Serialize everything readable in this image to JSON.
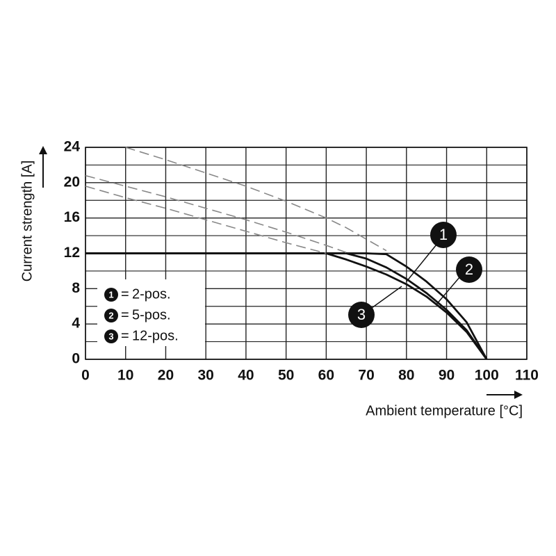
{
  "chart_data": {
    "type": "line",
    "y_label": "Current strength [A]",
    "x_label": "Ambient temperature [°C]",
    "x": [
      0,
      10,
      20,
      30,
      40,
      50,
      60,
      65,
      70,
      75,
      80,
      85,
      90,
      95,
      100
    ],
    "series": [
      {
        "name": "2-pos.",
        "marker": "1",
        "color": "#111111",
        "dashed": false,
        "values": [
          12,
          12,
          12,
          12,
          12,
          12,
          12,
          12,
          12,
          11.9,
          10.5,
          8.8,
          6.8,
          4.2,
          0
        ]
      },
      {
        "name": "5-pos.",
        "marker": "2",
        "color": "#111111",
        "dashed": false,
        "values": [
          12,
          12,
          12,
          12,
          12,
          12,
          12,
          12,
          11.4,
          10.4,
          9.1,
          7.5,
          5.6,
          3.3,
          0
        ]
      },
      {
        "name": "12-pos.",
        "marker": "3",
        "color": "#111111",
        "dashed": false,
        "values": [
          12,
          12,
          12,
          12,
          12,
          12,
          12,
          11.3,
          10.5,
          9.6,
          8.5,
          7.1,
          5.3,
          3.1,
          0
        ]
      },
      {
        "color": "#888888",
        "dashed": true,
        "values": [
          null,
          24,
          22.6,
          21.1,
          19.6,
          17.9,
          16,
          14.9,
          13.6,
          12.3,
          null,
          null,
          null,
          null,
          null
        ]
      },
      {
        "color": "#888888",
        "dashed": true,
        "values": [
          20.8,
          19.6,
          18.4,
          17.1,
          15.8,
          14.4,
          12.9,
          12.1,
          null,
          null,
          null,
          null,
          null,
          null,
          null
        ]
      },
      {
        "color": "#888888",
        "dashed": true,
        "values": [
          19.6,
          18.3,
          17.1,
          15.8,
          14.5,
          13.2,
          12,
          null,
          null,
          null,
          null,
          null,
          null,
          null,
          null
        ]
      }
    ],
    "legend_separator": "=",
    "xlim": [
      0,
      110
    ],
    "xticks": [
      0,
      10,
      20,
      30,
      40,
      50,
      60,
      70,
      80,
      90,
      100,
      110
    ],
    "ylim": [
      0,
      24
    ],
    "yticks": [
      0,
      4,
      8,
      12,
      16,
      20,
      24
    ],
    "y_minor_ticks": [
      2,
      6,
      10,
      14,
      18,
      22
    ],
    "grid": true
  }
}
